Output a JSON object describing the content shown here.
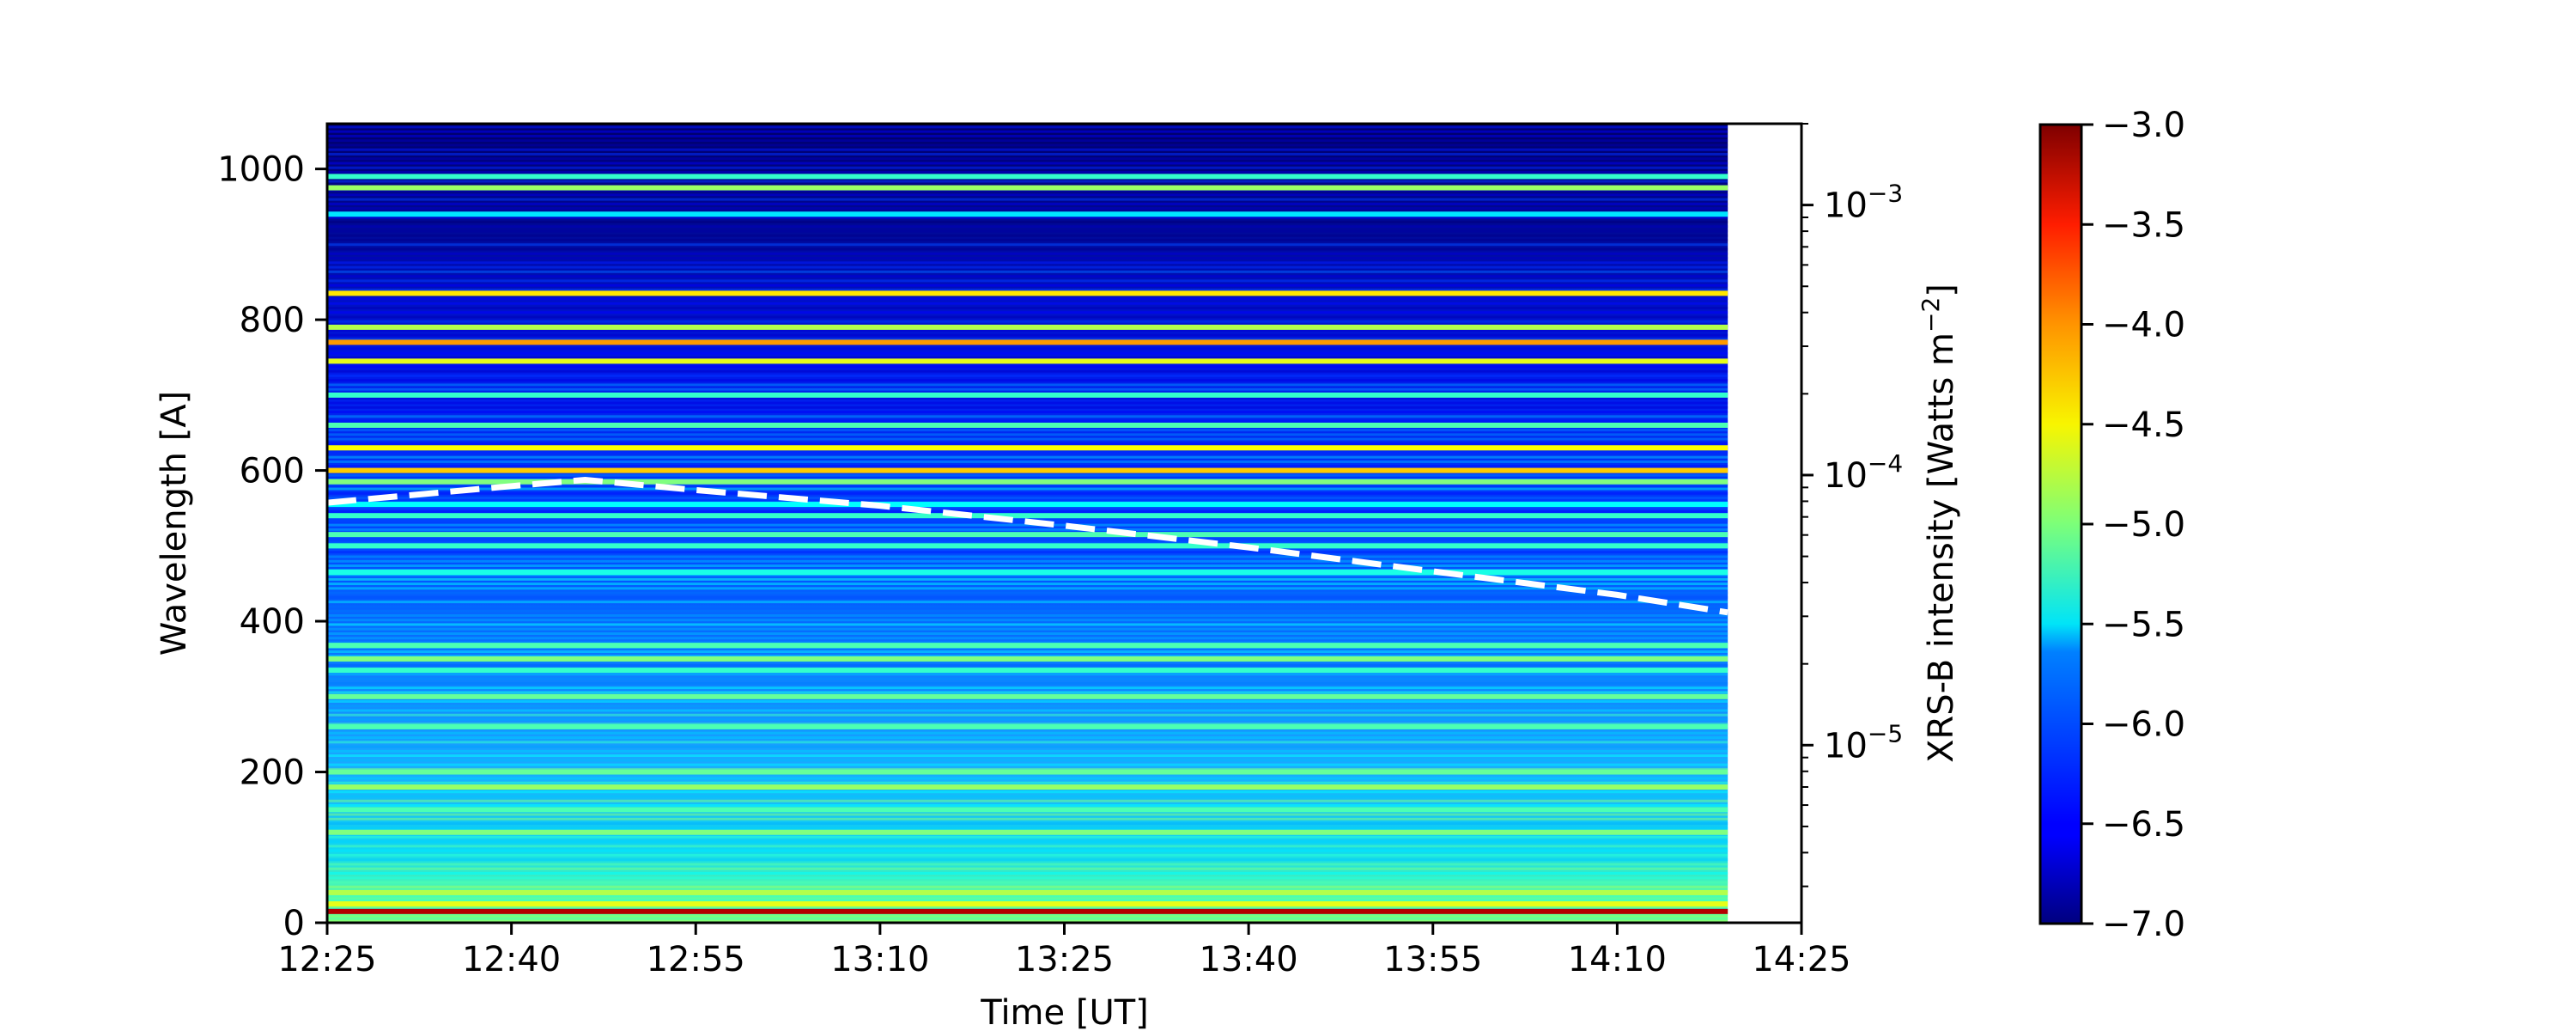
{
  "chart_data": {
    "type": "heatmap",
    "x_axis": {
      "label": "Time [UT]",
      "range": [
        "12:25",
        "14:25"
      ],
      "ticks": [
        "12:25",
        "12:40",
        "12:55",
        "13:10",
        "13:25",
        "13:40",
        "13:55",
        "14:10",
        "14:25"
      ]
    },
    "y_axis_left": {
      "label": "Wavelength [A]",
      "range": [
        0,
        1060
      ],
      "ticks": [
        0,
        200,
        400,
        600,
        800,
        1000
      ]
    },
    "y_axis_right": {
      "label": "XRS-B intensity [Watts m",
      "label_superscript": "−2",
      "label_close": "]",
      "scale": "log",
      "range": [
        2.2e-06,
        0.002
      ],
      "ticks": [
        {
          "value": 1e-05,
          "base": "10",
          "exp": "−5"
        },
        {
          "value": 0.0001,
          "base": "10",
          "exp": "−4"
        },
        {
          "value": 0.001,
          "base": "10",
          "exp": "−3"
        }
      ]
    },
    "data_time_range": [
      "12:25",
      "14:19"
    ],
    "colorbar": {
      "colormap": "jet",
      "range": [
        -7.0,
        -3.0
      ],
      "ticks": [
        "−3.0",
        "−3.5",
        "−4.0",
        "−4.5",
        "−5.0",
        "−5.5",
        "−6.0",
        "−6.5",
        "−7.0"
      ],
      "tick_values": [
        -3.0,
        -3.5,
        -4.0,
        -4.5,
        -5.0,
        -5.5,
        -6.0,
        -6.5,
        -7.0
      ]
    },
    "spectrum_lines": [
      {
        "wavelength": 15,
        "value": -3.2
      },
      {
        "wavelength": 25,
        "value": -4.6
      },
      {
        "wavelength": 40,
        "value": -4.8
      },
      {
        "wavelength": 120,
        "value": -5.0
      },
      {
        "wavelength": 150,
        "value": -5.2
      },
      {
        "wavelength": 180,
        "value": -4.9
      },
      {
        "wavelength": 200,
        "value": -5.1
      },
      {
        "wavelength": 260,
        "value": -5.2
      },
      {
        "wavelength": 300,
        "value": -5.1
      },
      {
        "wavelength": 335,
        "value": -5.3
      },
      {
        "wavelength": 350,
        "value": -5.0
      },
      {
        "wavelength": 368,
        "value": -5.2
      },
      {
        "wavelength": 465,
        "value": -5.4
      },
      {
        "wavelength": 500,
        "value": -5.3
      },
      {
        "wavelength": 515,
        "value": -5.2
      },
      {
        "wavelength": 540,
        "value": -5.3
      },
      {
        "wavelength": 555,
        "value": -5.5
      },
      {
        "wavelength": 585,
        "value": -5.0
      },
      {
        "wavelength": 600,
        "value": -4.3
      },
      {
        "wavelength": 630,
        "value": -4.5
      },
      {
        "wavelength": 660,
        "value": -5.2
      },
      {
        "wavelength": 700,
        "value": -5.3
      },
      {
        "wavelength": 745,
        "value": -4.6
      },
      {
        "wavelength": 770,
        "value": -4.1
      },
      {
        "wavelength": 790,
        "value": -4.8
      },
      {
        "wavelength": 835,
        "value": -4.4
      },
      {
        "wavelength": 940,
        "value": -5.6
      },
      {
        "wavelength": 975,
        "value": -4.9
      },
      {
        "wavelength": 990,
        "value": -5.3
      }
    ],
    "xrs_b_curve": {
      "style": "dashed",
      "color": "#ffffff",
      "points": [
        {
          "time": "12:25",
          "value": 7.9e-05
        },
        {
          "time": "12:40",
          "value": 9.1e-05
        },
        {
          "time": "12:46",
          "value": 9.6e-05
        },
        {
          "time": "12:55",
          "value": 8.8e-05
        },
        {
          "time": "13:10",
          "value": 7.7e-05
        },
        {
          "time": "13:25",
          "value": 6.5e-05
        },
        {
          "time": "13:40",
          "value": 5.4e-05
        },
        {
          "time": "13:55",
          "value": 4.4e-05
        },
        {
          "time": "14:10",
          "value": 3.6e-05
        },
        {
          "time": "14:19",
          "value": 3.1e-05
        }
      ]
    }
  }
}
